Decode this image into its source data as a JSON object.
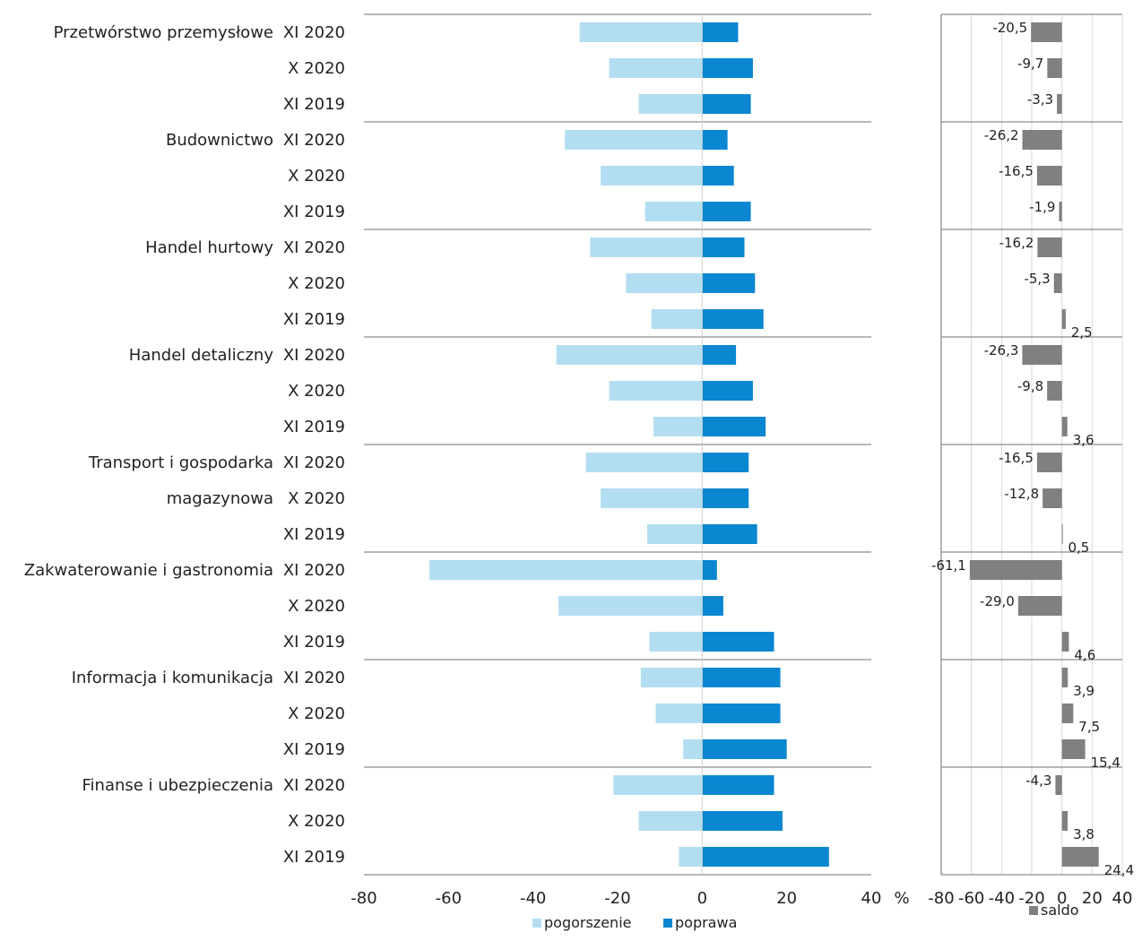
{
  "chart_data": [
    {
      "type": "bar",
      "orientation": "horizontal",
      "groups": [
        {
          "sector": "Przetwórstwo przemysłowe",
          "periods": [
            "XI 2020",
            "X 2020",
            "XI 2019"
          ]
        },
        {
          "sector": "Budownictwo",
          "periods": [
            "XI 2020",
            "X 2020",
            "XI 2019"
          ]
        },
        {
          "sector": "Handel hurtowy",
          "periods": [
            "XI 2020",
            "X 2020",
            "XI 2019"
          ]
        },
        {
          "sector": "Handel detaliczny",
          "periods": [
            "XI 2020",
            "X 2020",
            "XI 2019"
          ]
        },
        {
          "sector": [
            "Transport i gospodarka",
            "magazynowa"
          ],
          "periods": [
            "XI 2020",
            "X 2020",
            "XI 2019"
          ]
        },
        {
          "sector": "Zakwaterowanie i gastronomia",
          "periods": [
            "XI 2020",
            "X 2020",
            "XI 2019"
          ]
        },
        {
          "sector": "Informacja i komunikacja",
          "periods": [
            "XI 2020",
            "X 2020",
            "XI 2019"
          ]
        },
        {
          "sector": "Finanse i ubezpieczenia",
          "periods": [
            "XI 2020",
            "X 2020",
            "XI 2019"
          ]
        }
      ],
      "series": [
        {
          "name": "pogorszenie",
          "color": "#b3def2",
          "values": [
            -29,
            -22,
            -15,
            -32.5,
            -24,
            -13.5,
            -26.5,
            -18,
            -12,
            -34.5,
            -22,
            -11.5,
            -27.5,
            -24,
            -13,
            -64.5,
            -34,
            -12.5,
            -14.5,
            -11,
            -4.5,
            -21,
            -15,
            -5.5
          ]
        },
        {
          "name": "poprawa",
          "color": "#0a87d0",
          "values": [
            8.5,
            12,
            11.5,
            6,
            7.5,
            11.5,
            10,
            12.5,
            14.5,
            8,
            12,
            15,
            11,
            11,
            13,
            3.5,
            5,
            17,
            18.5,
            18.5,
            20,
            17,
            19,
            30
          ]
        }
      ],
      "xlim": [
        -80,
        40
      ],
      "xticks": [
        "-80",
        "-60",
        "-40",
        "-20",
        "0",
        "20",
        "40"
      ],
      "unit": "%",
      "grid": false
    },
    {
      "type": "bar",
      "orientation": "horizontal",
      "series": [
        {
          "name": "saldo",
          "color": "#808080",
          "values": [
            -20.5,
            -9.7,
            -3.3,
            -26.2,
            -16.5,
            -1.9,
            -16.2,
            -5.3,
            2.5,
            -26.3,
            -9.8,
            3.6,
            -16.5,
            -12.8,
            0.5,
            -61.1,
            -29.0,
            4.6,
            3.9,
            7.5,
            15.4,
            -4.3,
            3.8,
            24.4
          ]
        }
      ],
      "labels": [
        "-20,5",
        "-9,7",
        "-3,3",
        "-26,2",
        "-16,5",
        "-1,9",
        "-16,2",
        "-5,3",
        "2,5",
        "-26,3",
        "-9,8",
        "3,6",
        "-16,5",
        "-12,8",
        "0,5",
        "-61,1",
        "-29,0",
        "4,6",
        "3,9",
        "7,5",
        "15,4",
        "-4,3",
        "3,8",
        "24,4"
      ],
      "xlim": [
        -80,
        40
      ],
      "xticks": [
        "-80",
        "-60",
        "-40",
        "-20",
        "0",
        "20",
        "40"
      ],
      "grid": true
    }
  ]
}
